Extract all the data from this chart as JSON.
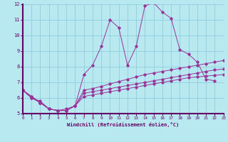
{
  "xlabel": "Windchill (Refroidissement éolien,°C)",
  "xlim": [
    0,
    23
  ],
  "ylim": [
    5,
    12
  ],
  "yticks": [
    5,
    6,
    7,
    8,
    9,
    10,
    11,
    12
  ],
  "xticks": [
    0,
    1,
    2,
    3,
    4,
    5,
    6,
    7,
    8,
    9,
    10,
    11,
    12,
    13,
    14,
    15,
    16,
    17,
    18,
    19,
    20,
    21,
    22,
    23
  ],
  "background_color": "#b8e8f0",
  "grid_color": "#88c8d8",
  "line_color": "#993399",
  "series1_x": [
    0,
    1,
    2,
    3,
    4,
    5,
    6,
    7,
    8,
    9,
    10,
    11,
    12,
    13,
    14,
    15,
    16,
    17,
    18,
    19,
    20,
    21,
    22
  ],
  "series1_y": [
    6.5,
    6.0,
    5.7,
    5.3,
    5.2,
    5.2,
    5.5,
    7.5,
    8.1,
    9.3,
    11.0,
    10.5,
    8.1,
    9.3,
    11.9,
    12.1,
    11.5,
    11.1,
    9.1,
    8.8,
    8.3,
    7.2,
    7.1
  ],
  "series2_x": [
    0,
    1,
    2,
    3,
    4,
    5,
    6,
    7,
    8,
    9,
    10,
    11,
    12,
    13,
    14,
    15,
    16,
    17,
    18,
    19,
    20,
    21,
    22,
    23
  ],
  "series2_y": [
    6.5,
    6.0,
    5.8,
    5.3,
    5.2,
    5.3,
    5.5,
    6.5,
    6.6,
    6.75,
    6.9,
    7.05,
    7.2,
    7.35,
    7.5,
    7.6,
    7.7,
    7.8,
    7.9,
    8.0,
    8.1,
    8.2,
    8.3,
    8.4
  ],
  "series3_x": [
    0,
    1,
    2,
    3,
    4,
    5,
    6,
    7,
    8,
    9,
    10,
    11,
    12,
    13,
    14,
    15,
    16,
    17,
    18,
    19,
    20,
    21,
    22,
    23
  ],
  "series3_y": [
    6.5,
    6.1,
    5.7,
    5.3,
    5.2,
    5.2,
    5.5,
    6.3,
    6.4,
    6.5,
    6.6,
    6.7,
    6.8,
    6.9,
    7.0,
    7.1,
    7.2,
    7.3,
    7.4,
    7.5,
    7.6,
    7.7,
    7.8,
    7.85
  ],
  "series4_x": [
    0,
    1,
    2,
    3,
    4,
    5,
    6,
    7,
    8,
    9,
    10,
    11,
    12,
    13,
    14,
    15,
    16,
    17,
    18,
    19,
    20,
    21,
    22,
    23
  ],
  "series4_y": [
    6.5,
    6.1,
    5.7,
    5.3,
    5.2,
    5.2,
    5.5,
    6.1,
    6.2,
    6.3,
    6.4,
    6.5,
    6.6,
    6.7,
    6.8,
    6.9,
    7.0,
    7.1,
    7.2,
    7.3,
    7.35,
    7.4,
    7.45,
    7.5
  ]
}
